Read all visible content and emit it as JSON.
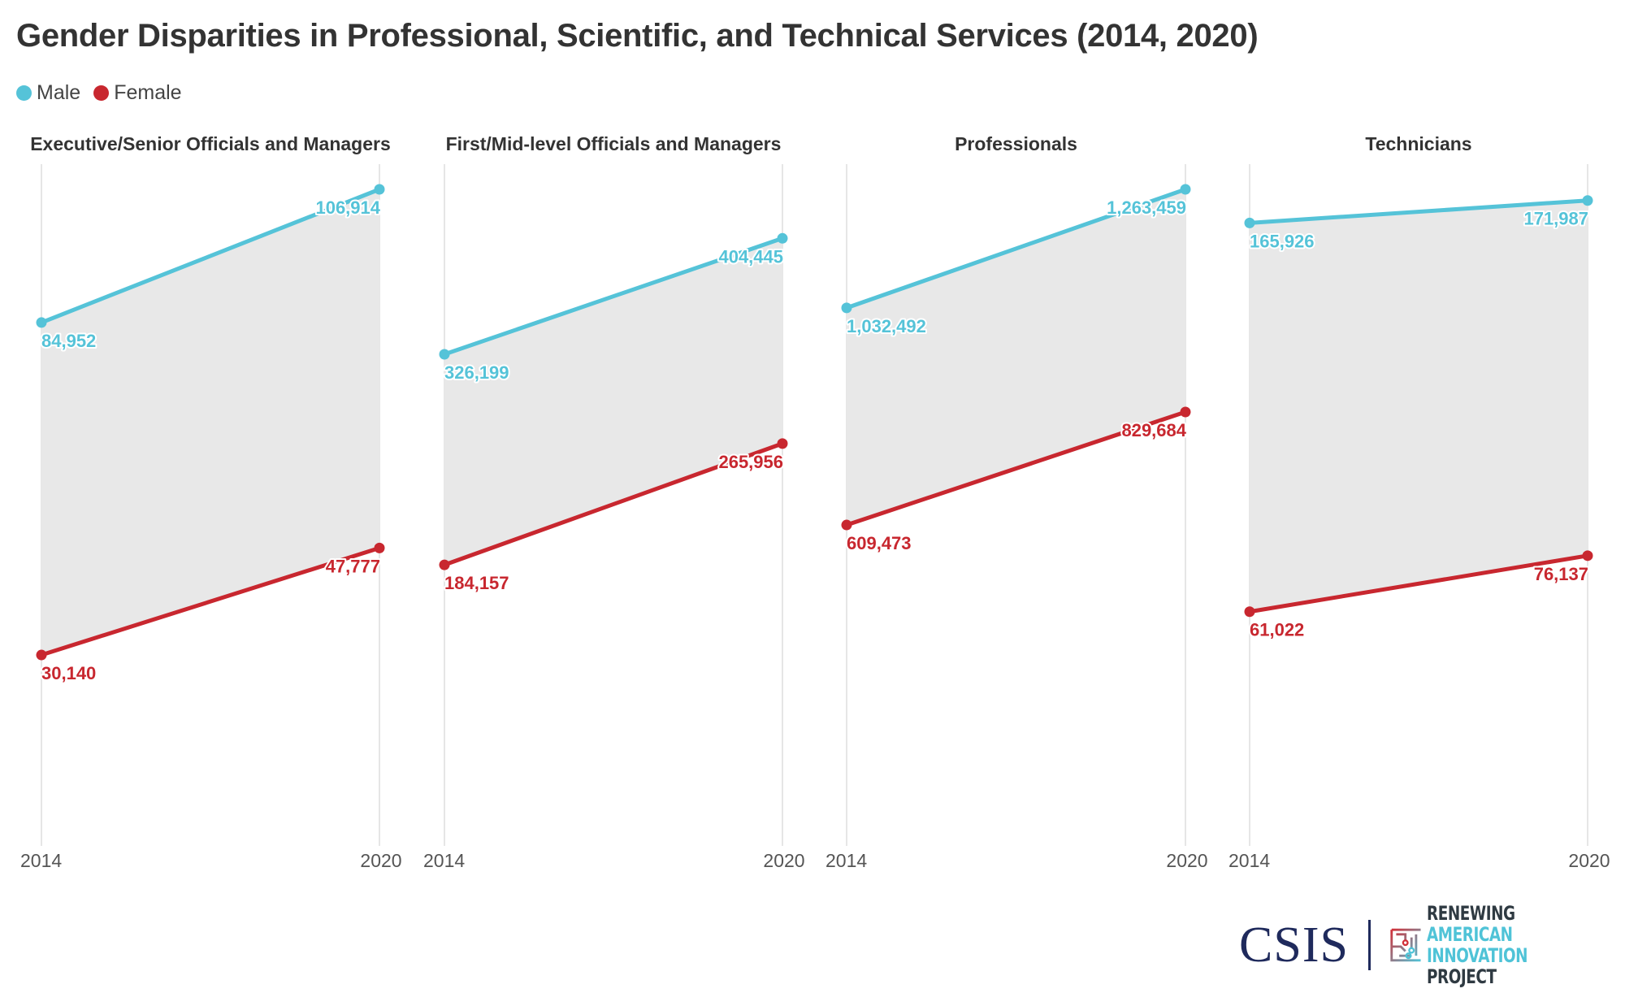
{
  "title": "Gender Disparities in Professional, Scientific, and Technical Services (2014, 2020)",
  "legend": [
    {
      "label": "Male",
      "color": "#55c3d8"
    },
    {
      "label": "Female",
      "color": "#c8272f"
    }
  ],
  "logo": {
    "csis": "CSIS",
    "raip_line1_a": "RENEWING",
    "raip_line1_b": "AMERICAN",
    "raip_line2_a": "INNOVATION",
    "raip_line2_b": "PROJECT"
  },
  "chart_data": [
    {
      "type": "line",
      "title": "Executive/Senior Officials and Managers",
      "categories": [
        "2014",
        "2020"
      ],
      "ylim": [
        0,
        106914
      ],
      "series": [
        {
          "name": "Male",
          "values": [
            84952,
            106914
          ],
          "labels": [
            "84,952",
            "106,914"
          ]
        },
        {
          "name": "Female",
          "values": [
            30140,
            47777
          ],
          "labels": [
            "30,140",
            "47,777"
          ]
        }
      ]
    },
    {
      "type": "line",
      "title": "First/Mid-level Officials and Managers",
      "categories": [
        "2014",
        "2020"
      ],
      "ylim": [
        0,
        437500
      ],
      "series": [
        {
          "name": "Male",
          "values": [
            326199,
            404445
          ],
          "labels": [
            "326,199",
            "404,445"
          ]
        },
        {
          "name": "Female",
          "values": [
            184157,
            265956
          ],
          "labels": [
            "184,157",
            "265,956"
          ]
        }
      ]
    },
    {
      "type": "line",
      "title": "Professionals",
      "categories": [
        "2014",
        "2020"
      ],
      "ylim": [
        0,
        1263459
      ],
      "series": [
        {
          "name": "Male",
          "values": [
            1032492,
            1263459
          ],
          "labels": [
            "1,032,492",
            "1,263,459"
          ]
        },
        {
          "name": "Female",
          "values": [
            609473,
            829684
          ],
          "labels": [
            "609,473",
            "829,684"
          ]
        }
      ]
    },
    {
      "type": "line",
      "title": "Technicians",
      "categories": [
        "2014",
        "2020"
      ],
      "ylim": [
        0,
        175000
      ],
      "series": [
        {
          "name": "Male",
          "values": [
            165926,
            171987
          ],
          "labels": [
            "165,926",
            "171,987"
          ]
        },
        {
          "name": "Female",
          "values": [
            61022,
            76137
          ],
          "labels": [
            "61,022",
            "76,137"
          ]
        }
      ]
    }
  ]
}
